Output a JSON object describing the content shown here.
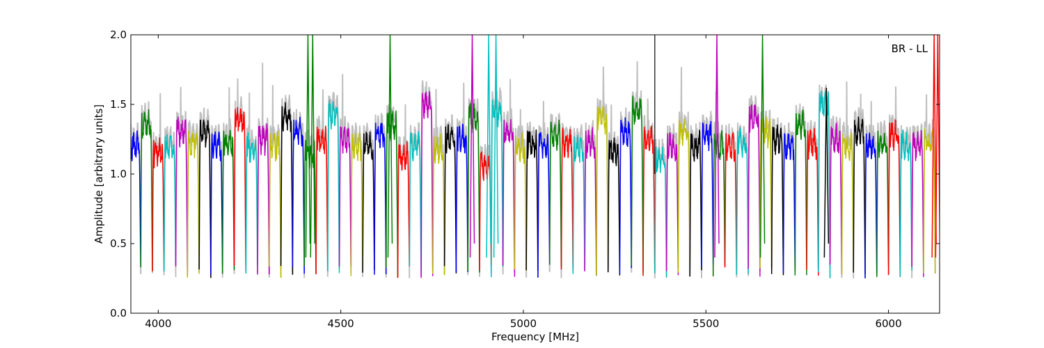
{
  "chart_data": {
    "type": "line",
    "title": "",
    "annotation": "BR - LL",
    "xlabel": "Frequency [MHz]",
    "ylabel": "Amplitude [arbitrary units]",
    "xlim": [
      3925,
      6140
    ],
    "ylim": [
      0.0,
      2.0
    ],
    "xticks": [
      4000,
      4500,
      5000,
      5500,
      6000
    ],
    "yticks": [
      0.0,
      0.5,
      1.0,
      1.5,
      2.0
    ],
    "xtick_labels": [
      "4000",
      "4500",
      "5000",
      "5500",
      "6000"
    ],
    "ytick_labels": [
      "0.0",
      "0.5",
      "1.0",
      "1.5",
      "2.0"
    ],
    "grid": false,
    "reference_line_x": 5360,
    "color_cycle": [
      "#0000ff",
      "#008000",
      "#ff0000",
      "#00bfbf",
      "#bf00bf",
      "#bfbf00",
      "#000000"
    ],
    "background_trace_color": "#bfbfbf",
    "channel_width_mhz": 32,
    "channel_starts_mhz": [
      3920,
      3952,
      3984,
      4016,
      4048,
      4080,
      4112,
      4144,
      4176,
      4208,
      4240,
      4272,
      4304,
      4336,
      4368,
      4400,
      4432,
      4464,
      4496,
      4528,
      4560,
      4592,
      4624,
      4656,
      4688,
      4720,
      4752,
      4784,
      4816,
      4848,
      4880,
      4912,
      4944,
      4976,
      5008,
      5040,
      5072,
      5104,
      5136,
      5168,
      5200,
      5232,
      5264,
      5296,
      5328,
      5360,
      5392,
      5424,
      5456,
      5488,
      5520,
      5552,
      5584,
      5616,
      5648,
      5680,
      5712,
      5744,
      5776,
      5808,
      5840,
      5872,
      5904,
      5936,
      5968,
      6000,
      6032,
      6064,
      6096
    ],
    "channel_mid_amplitude": [
      1.2,
      1.35,
      1.15,
      1.18,
      1.3,
      1.22,
      1.3,
      1.2,
      1.22,
      1.38,
      1.18,
      1.25,
      1.2,
      1.4,
      1.3,
      1.15,
      1.25,
      1.42,
      1.25,
      1.2,
      1.2,
      1.28,
      1.35,
      1.12,
      1.2,
      1.5,
      1.18,
      1.25,
      1.25,
      1.4,
      1.05,
      1.45,
      1.3,
      1.18,
      1.22,
      1.2,
      1.28,
      1.22,
      1.18,
      1.22,
      1.4,
      1.15,
      1.3,
      1.45,
      1.25,
      1.1,
      1.2,
      1.3,
      1.2,
      1.28,
      1.2,
      1.2,
      1.22,
      1.4,
      1.3,
      1.25,
      1.2,
      1.35,
      1.22,
      1.5,
      1.25,
      1.2,
      1.3,
      1.2,
      1.22,
      1.28,
      1.2,
      1.2,
      1.22
    ],
    "spikes": [
      {
        "x": 4410,
        "y": 2.0,
        "series_color": "#008000"
      },
      {
        "x": 4423,
        "y": 2.0,
        "series_color": "#008000"
      },
      {
        "x": 4635,
        "y": 2.0,
        "series_color": "#008000"
      },
      {
        "x": 4860,
        "y": 2.0,
        "series_color": "#bf00bf"
      },
      {
        "x": 4905,
        "y": 2.0,
        "series_color": "#00bfbf"
      },
      {
        "x": 4925,
        "y": 2.0,
        "series_color": "#00bfbf"
      },
      {
        "x": 5530,
        "y": 2.0,
        "series_color": "#bf00bf"
      },
      {
        "x": 5655,
        "y": 2.0,
        "series_color": "#008000"
      },
      {
        "x": 5830,
        "y": 1.62,
        "series_color": "#000000"
      },
      {
        "x": 6125,
        "y": 2.0,
        "series_color": "#ff0000"
      },
      {
        "x": 6135,
        "y": 2.0,
        "series_color": "#ff0000"
      }
    ]
  }
}
